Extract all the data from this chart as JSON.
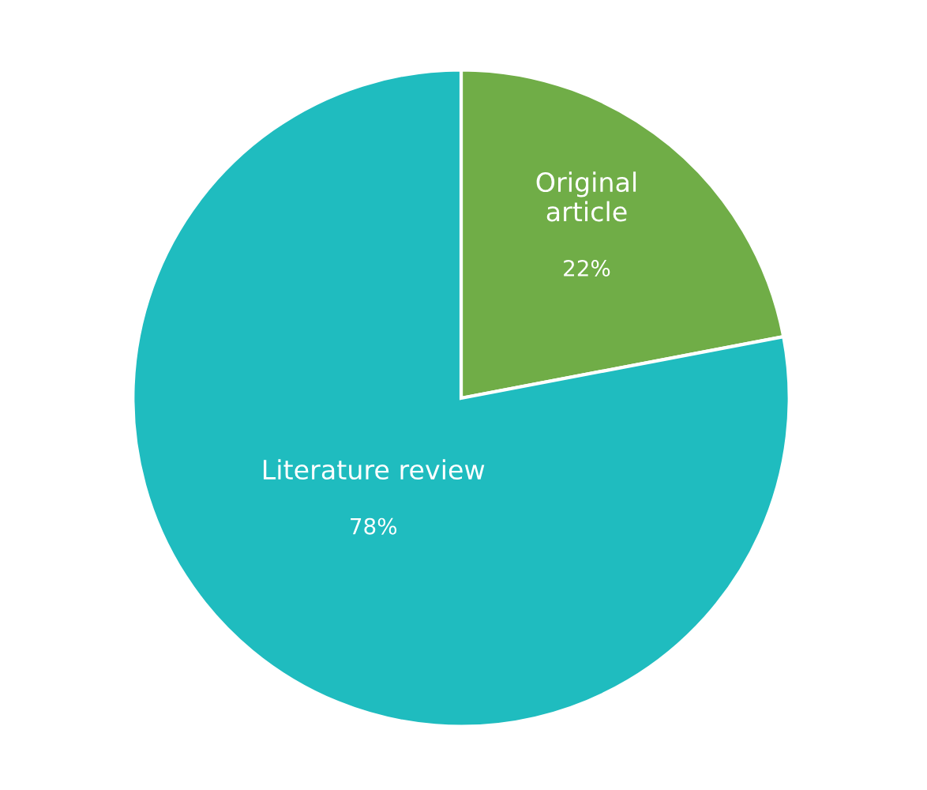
{
  "chart_data": {
    "type": "pie",
    "categories": [
      "Original\narticle",
      "Literature review"
    ],
    "values": [
      22,
      78
    ],
    "colors": [
      "#70ad47",
      "#1fbcbf"
    ],
    "value_labels": [
      "22%",
      "78%"
    ],
    "legend": false
  }
}
